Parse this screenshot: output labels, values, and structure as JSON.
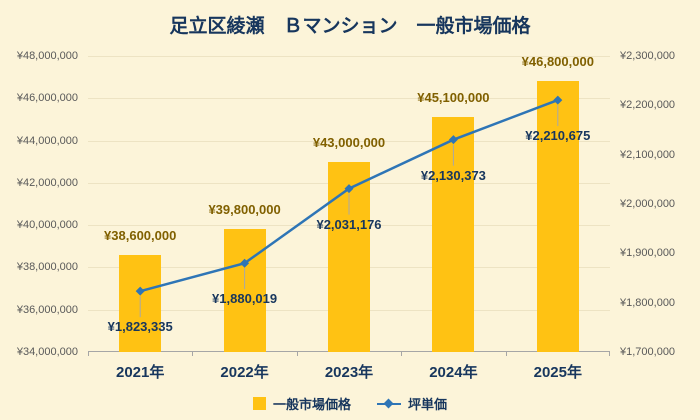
{
  "title": "足立区綾瀬　Ｂマンション　一般市場価格",
  "legend": {
    "bar_label": "一般市場価格",
    "line_label": "坪単価"
  },
  "colors": {
    "background": "#FCF4D9",
    "bar": "#FFC213",
    "bar_label": "#806000",
    "line": "#2E75B6",
    "navy_text": "#17365D",
    "axis_text": "#595959",
    "gridline": "#EDE3C3",
    "axis_line": "#A6A6A6",
    "leader_line": "#A8A8A8"
  },
  "chart_data": {
    "type": "bar+line",
    "title": "足立区綾瀬　Ｂマンション　一般市場価格",
    "categories": [
      "2021年",
      "2022年",
      "2023年",
      "2024年",
      "2025年"
    ],
    "series": [
      {
        "name": "一般市場価格",
        "type": "bar",
        "axis": "left",
        "values": [
          38600000,
          39800000,
          43000000,
          45100000,
          46800000
        ],
        "data_labels": [
          "¥38,600,000",
          "¥39,800,000",
          "¥43,000,000",
          "¥45,100,000",
          "¥46,800,000"
        ]
      },
      {
        "name": "坪単価",
        "type": "line",
        "axis": "right",
        "values": [
          1823335,
          1880019,
          2031176,
          2130373,
          2210675
        ],
        "data_labels": [
          "¥1,823,335",
          "¥1,880,019",
          "¥2,031,176",
          "¥2,130,373",
          "¥2,210,675"
        ]
      }
    ],
    "left_axis": {
      "min": 34000000,
      "max": 48000000,
      "step": 2000000,
      "tick_labels": [
        "¥34,000,000",
        "¥36,000,000",
        "¥38,000,000",
        "¥40,000,000",
        "¥42,000,000",
        "¥44,000,000",
        "¥46,000,000",
        "¥48,000,000"
      ]
    },
    "right_axis": {
      "min": 1700000,
      "max": 2300000,
      "step": 100000,
      "tick_labels": [
        "¥1,700,000",
        "¥1,800,000",
        "¥1,900,000",
        "¥2,000,000",
        "¥2,100,000",
        "¥2,200,000",
        "¥2,300,000"
      ]
    },
    "grid": true,
    "legend_position": "bottom"
  }
}
